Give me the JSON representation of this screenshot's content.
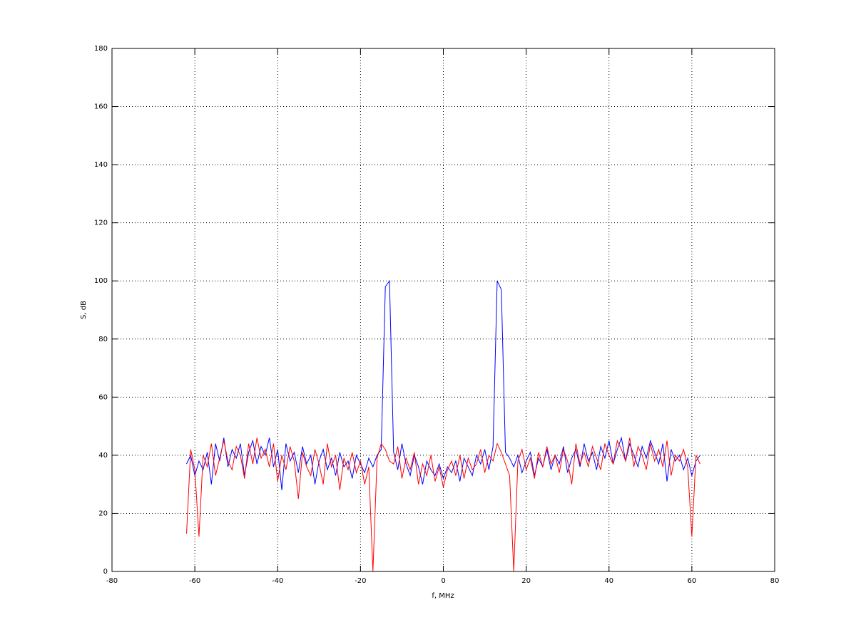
{
  "chart_data": {
    "type": "line",
    "xlabel": "f, MHz",
    "ylabel": "S, dB",
    "xlim": [
      -80,
      80
    ],
    "ylim": [
      0,
      180
    ],
    "xticks": [
      -80,
      -60,
      -40,
      -20,
      0,
      20,
      40,
      60,
      80
    ],
    "yticks": [
      0,
      20,
      40,
      60,
      80,
      100,
      120,
      140,
      160,
      180
    ],
    "grid": true,
    "x": [
      -62,
      -61,
      -60,
      -59,
      -58,
      -57,
      -56,
      -55,
      -54,
      -53,
      -52,
      -51,
      -50,
      -49,
      -48,
      -47,
      -46,
      -45,
      -44,
      -43,
      -42,
      -41,
      -40,
      -39,
      -38,
      -37,
      -36,
      -35,
      -34,
      -33,
      -32,
      -31,
      -30,
      -29,
      -28,
      -27,
      -26,
      -25,
      -24,
      -23,
      -22,
      -21,
      -20,
      -19,
      -18,
      -17,
      -16,
      -15,
      -14,
      -13,
      -12,
      -11,
      -10,
      -9,
      -8,
      -7,
      -6,
      -5,
      -4,
      -3,
      -2,
      -1,
      0,
      1,
      2,
      3,
      4,
      5,
      6,
      7,
      8,
      9,
      10,
      11,
      12,
      13,
      14,
      15,
      16,
      17,
      18,
      19,
      20,
      21,
      22,
      23,
      24,
      25,
      26,
      27,
      28,
      29,
      30,
      31,
      32,
      33,
      34,
      35,
      36,
      37,
      38,
      39,
      40,
      41,
      42,
      43,
      44,
      45,
      46,
      47,
      48,
      49,
      50,
      51,
      52,
      53,
      54,
      55,
      56,
      57,
      58,
      59,
      60,
      61,
      62
    ],
    "series": [
      {
        "color": "#0000ff",
        "values": [
          37,
          40,
          33,
          38,
          35,
          41,
          30,
          44,
          38,
          46,
          36,
          42,
          39,
          44,
          33,
          41,
          45,
          37,
          43,
          40,
          46,
          36,
          42,
          28,
          44,
          38,
          41,
          34,
          43,
          37,
          40,
          30,
          38,
          42,
          35,
          39,
          33,
          41,
          36,
          38,
          32,
          40,
          37,
          34,
          39,
          36,
          40,
          42,
          98,
          100,
          41,
          35,
          44,
          37,
          33,
          40,
          36,
          30,
          38,
          35,
          33,
          37,
          32,
          36,
          34,
          38,
          31,
          39,
          36,
          33,
          40,
          37,
          42,
          35,
          43,
          100,
          97,
          41,
          39,
          36,
          40,
          34,
          38,
          41,
          33,
          39,
          36,
          42,
          35,
          40,
          37,
          43,
          34,
          39,
          42,
          36,
          44,
          38,
          41,
          35,
          43,
          39,
          45,
          37,
          42,
          46,
          38,
          44,
          40,
          36,
          43,
          39,
          45,
          41,
          37,
          44,
          31,
          42,
          38,
          40,
          35,
          39,
          33,
          38,
          40
        ]
      },
      {
        "color": "#ff0000",
        "values": [
          13,
          42,
          35,
          12,
          40,
          36,
          44,
          33,
          39,
          45,
          38,
          35,
          43,
          40,
          32,
          44,
          37,
          46,
          39,
          42,
          36,
          44,
          31,
          40,
          35,
          43,
          38,
          25,
          41,
          36,
          33,
          42,
          37,
          30,
          44,
          36,
          40,
          28,
          39,
          35,
          41,
          34,
          38,
          30,
          36,
          0,
          39,
          44,
          42,
          38,
          37,
          43,
          32,
          39,
          35,
          41,
          30,
          37,
          33,
          40,
          31,
          36,
          29,
          35,
          38,
          33,
          40,
          32,
          39,
          35,
          37,
          42,
          34,
          40,
          38,
          44,
          41,
          37,
          33,
          0,
          38,
          42,
          35,
          39,
          32,
          41,
          36,
          43,
          37,
          40,
          34,
          42,
          38,
          30,
          44,
          37,
          41,
          36,
          43,
          39,
          35,
          44,
          40,
          37,
          45,
          42,
          38,
          46,
          36,
          43,
          40,
          35,
          44,
          38,
          42,
          36,
          45,
          33,
          40,
          38,
          42,
          36,
          12,
          40,
          37
        ]
      }
    ]
  }
}
